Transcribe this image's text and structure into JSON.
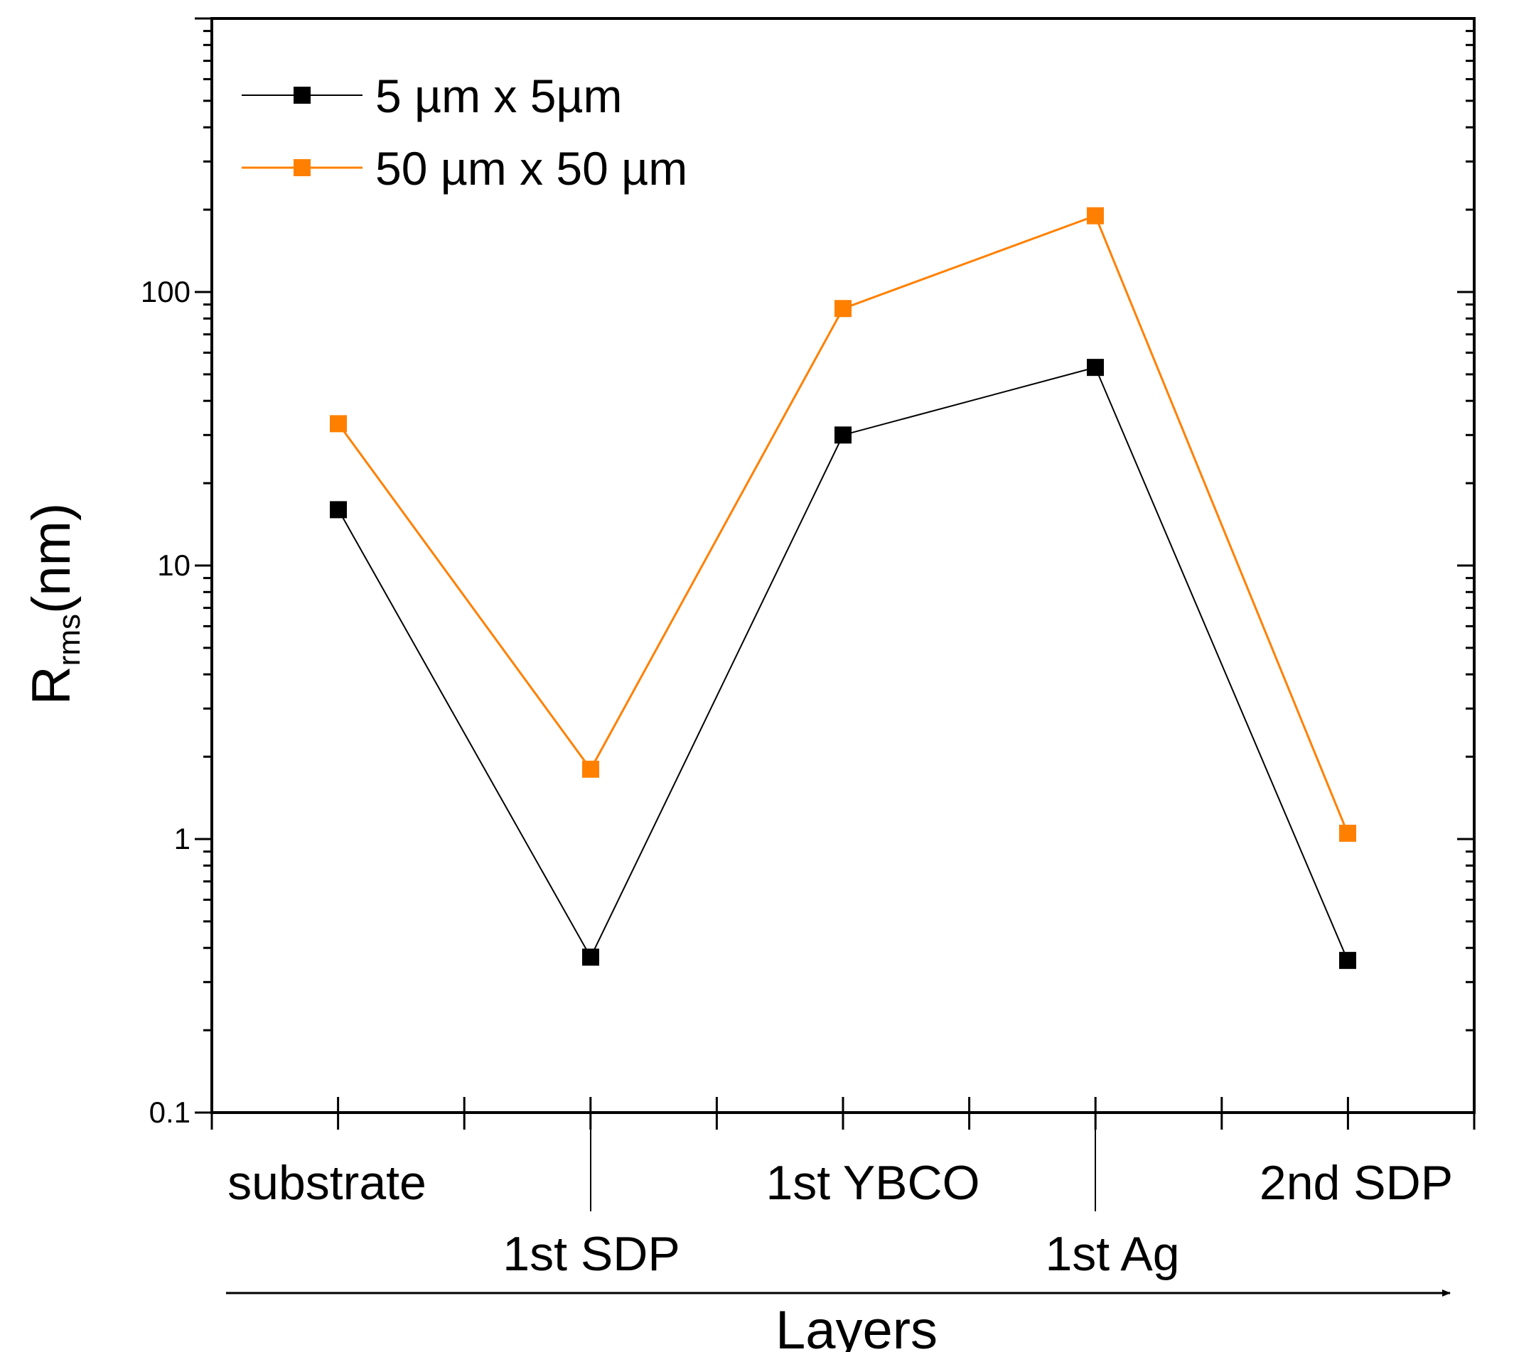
{
  "chart_data": {
    "type": "line",
    "title": "",
    "xlabel": "Layers",
    "ylabel": "R",
    "ylabel_sub": "rms",
    "ylabel_unit": "(nm)",
    "yscale": "log",
    "ylim": [
      0.1,
      1000
    ],
    "yticks": [
      {
        "value": 0.1,
        "label": "0.1"
      },
      {
        "value": 1,
        "label": "1"
      },
      {
        "value": 10,
        "label": "10"
      },
      {
        "value": 100,
        "label": "100"
      }
    ],
    "categories": [
      "substrate",
      "1st SDP",
      "1st YBCO",
      "1st Ag",
      "2nd SDP"
    ],
    "series": [
      {
        "name": "5 µm x 5µm",
        "color": "#000000",
        "values": [
          16,
          0.37,
          30,
          53,
          0.36
        ]
      },
      {
        "name": "50 µm x 50 µm",
        "color": "#FF8000",
        "values": [
          33,
          1.8,
          87,
          190,
          1.05
        ]
      }
    ],
    "legend": "top-left",
    "grid": false
  }
}
